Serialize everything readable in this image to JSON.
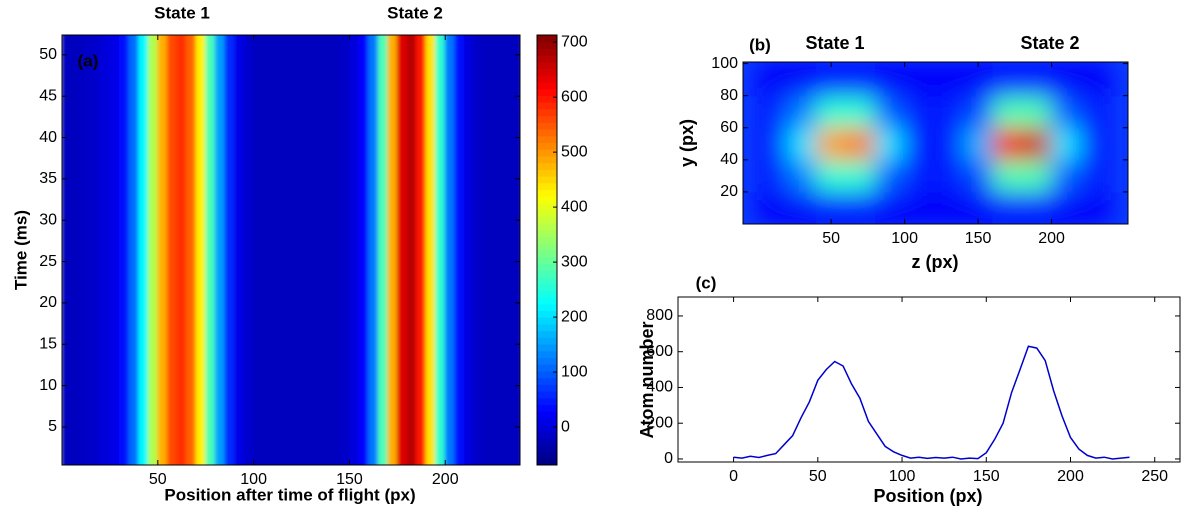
{
  "chart_data": [
    {
      "type": "heatmap",
      "panel_label": "(a)",
      "state_labels": [
        "State 1",
        "State 2"
      ],
      "x_label": "Position after time of flight (px)",
      "y_label": "Time (ms)",
      "x": [
        2.5,
        7.5,
        12.5,
        17.5,
        22.5,
        27.5,
        32.5,
        37.5,
        42.5,
        47.5,
        52.5,
        57.5,
        62.5,
        67.5,
        72.5,
        77.5,
        82.5,
        87.5,
        92.5,
        97.5,
        102.5,
        107.5,
        112.5,
        117.5,
        122.5,
        127.5,
        132.5,
        137.5,
        142.5,
        147.5,
        152.5,
        157.5,
        162.5,
        167.5,
        172.5,
        177.5,
        182.5,
        187.5,
        192.5,
        197.5,
        202.5,
        207.5,
        212.5,
        217.5,
        222.5,
        227.5,
        232.5,
        237.5
      ],
      "values": [
        -20,
        -20,
        -15,
        -10,
        0,
        10,
        40,
        110,
        220,
        360,
        480,
        560,
        580,
        540,
        430,
        280,
        150,
        60,
        10,
        -10,
        -20,
        -20,
        -20,
        -20,
        -20,
        -20,
        -20,
        -20,
        -20,
        -15,
        0,
        30,
        120,
        280,
        480,
        640,
        670,
        600,
        440,
        260,
        120,
        40,
        0,
        -15,
        -20,
        -20,
        -20,
        -20
      ],
      "xlim": [
        0,
        239
      ],
      "ylim": [
        0.4,
        52.4
      ],
      "xticks": [
        50,
        100,
        150,
        200
      ],
      "yticks": [
        5,
        10,
        15,
        20,
        25,
        30,
        35,
        40,
        45,
        50
      ],
      "clim": [
        -69,
        713
      ],
      "cticks": [
        0,
        100,
        200,
        300,
        400,
        500,
        600,
        700
      ]
    },
    {
      "type": "image",
      "panel_label": "(b)",
      "state_labels": [
        "State 1",
        "State 2"
      ],
      "x_label": "z (px)",
      "y_label": "y (px)",
      "x": [
        10,
        30,
        50,
        70,
        90,
        110,
        130,
        150,
        170,
        190,
        210,
        230
      ],
      "y": [
        10,
        30,
        50,
        70,
        90
      ],
      "values": [
        [
          12,
          12,
          14,
          14,
          12,
          12,
          12,
          12,
          14,
          14,
          12,
          12
        ],
        [
          15,
          25,
          42,
          42,
          22,
          15,
          15,
          20,
          45,
          45,
          22,
          15
        ],
        [
          15,
          35,
          72,
          76,
          35,
          15,
          15,
          30,
          88,
          92,
          35,
          15
        ],
        [
          15,
          25,
          42,
          42,
          22,
          15,
          15,
          20,
          45,
          45,
          22,
          15
        ],
        [
          12,
          12,
          14,
          14,
          12,
          12,
          12,
          12,
          14,
          14,
          12,
          12
        ]
      ],
      "clim": [
        0,
        100
      ],
      "xlim": [
        -10,
        252
      ],
      "ylim": [
        0,
        101
      ],
      "xticks": [
        50,
        100,
        150,
        200
      ],
      "yticks": [
        20,
        40,
        60,
        80,
        100
      ]
    },
    {
      "type": "line",
      "panel_label": "(c)",
      "x_label": "Position (px)",
      "y_label": "Atom number",
      "color": "#0000cc",
      "x": [
        0,
        5,
        10,
        15,
        20,
        25,
        30,
        35,
        40,
        45,
        50,
        55,
        60,
        65,
        70,
        75,
        80,
        85,
        90,
        95,
        100,
        105,
        110,
        115,
        120,
        125,
        130,
        135,
        140,
        145,
        150,
        155,
        160,
        165,
        170,
        175,
        180,
        185,
        190,
        195,
        200,
        205,
        210,
        215,
        220,
        225,
        230,
        235
      ],
      "values": [
        10,
        5,
        15,
        8,
        20,
        30,
        80,
        130,
        230,
        320,
        440,
        500,
        545,
        520,
        420,
        340,
        210,
        140,
        70,
        40,
        20,
        5,
        10,
        3,
        8,
        5,
        10,
        0,
        5,
        2,
        35,
        110,
        200,
        370,
        500,
        630,
        620,
        550,
        380,
        240,
        120,
        55,
        20,
        5,
        10,
        0,
        5,
        10
      ],
      "xlim": [
        -33,
        265
      ],
      "ylim": [
        -17,
        906
      ],
      "xticks": [
        0,
        50,
        100,
        150,
        200,
        250
      ],
      "yticks": [
        0,
        200,
        400,
        600,
        800
      ]
    }
  ]
}
